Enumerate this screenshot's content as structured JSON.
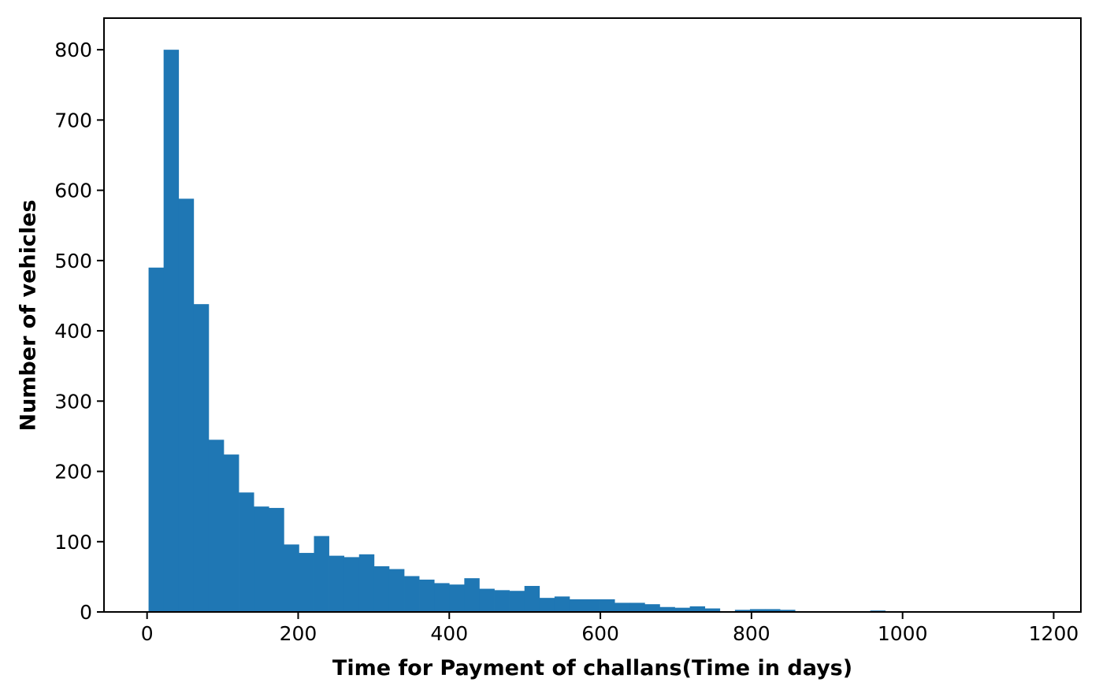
{
  "chart_data": {
    "type": "histogram",
    "title": "",
    "xlabel": "Time for Payment of challans(Time in days)",
    "ylabel": "Number of vehicles",
    "bar_color": "#1f77b4",
    "axis_color": "#000000",
    "background_color": "#ffffff",
    "grid": false,
    "legend": "none",
    "bin_start_days": 2,
    "bin_width_days": 19.9,
    "counts": [
      490,
      800,
      588,
      438,
      245,
      224,
      170,
      150,
      148,
      96,
      84,
      108,
      80,
      78,
      82,
      65,
      61,
      51,
      46,
      41,
      39,
      48,
      33,
      31,
      30,
      37,
      20,
      22,
      18,
      18,
      18,
      13,
      13,
      11,
      7,
      6,
      8,
      5,
      0,
      3,
      4,
      4,
      3,
      0,
      0,
      0,
      0,
      0,
      2
    ],
    "x_ticks": [
      0,
      200,
      400,
      600,
      800,
      1000,
      1200
    ],
    "y_ticks": [
      0,
      100,
      200,
      300,
      400,
      500,
      600,
      700,
      800
    ],
    "xlim": [
      -57,
      1236
    ],
    "ylim": [
      0,
      845
    ]
  }
}
